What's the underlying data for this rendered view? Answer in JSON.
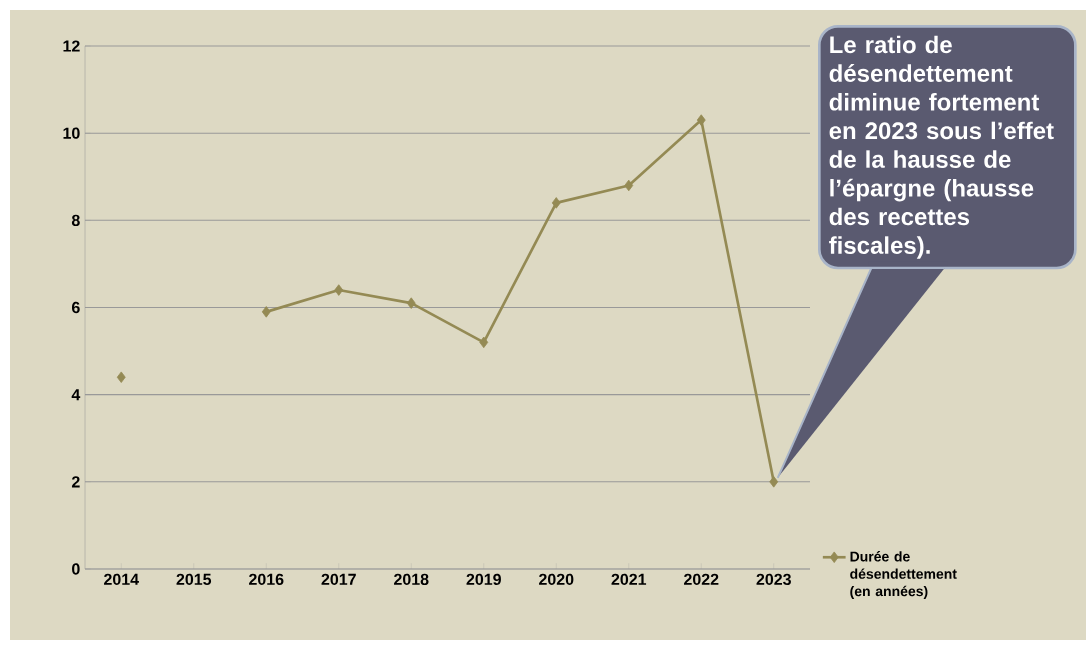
{
  "chart_data": {
    "type": "line",
    "categories": [
      "2014",
      "2015",
      "2016",
      "2017",
      "2018",
      "2019",
      "2020",
      "2021",
      "2022",
      "2023"
    ],
    "series": [
      {
        "name": "Durée de désendettement (en années)",
        "color": "#948a54",
        "values": [
          4.4,
          null,
          5.9,
          6.4,
          6.1,
          5.2,
          8.4,
          8.8,
          10.3,
          2.0
        ]
      }
    ],
    "ylim": [
      0,
      12
    ],
    "yticks": [
      0,
      2,
      4,
      6,
      8,
      10,
      12
    ],
    "grid": "y",
    "marker": "diamond",
    "legend": "bottom right",
    "annotations": [
      {
        "text": "Le ratio de désendettement diminue fortement en 2023 sous l’effet de la hausse de l’épargne (hausse des recettes fiscales).",
        "x": "2023",
        "y": 2
      }
    ]
  }
}
